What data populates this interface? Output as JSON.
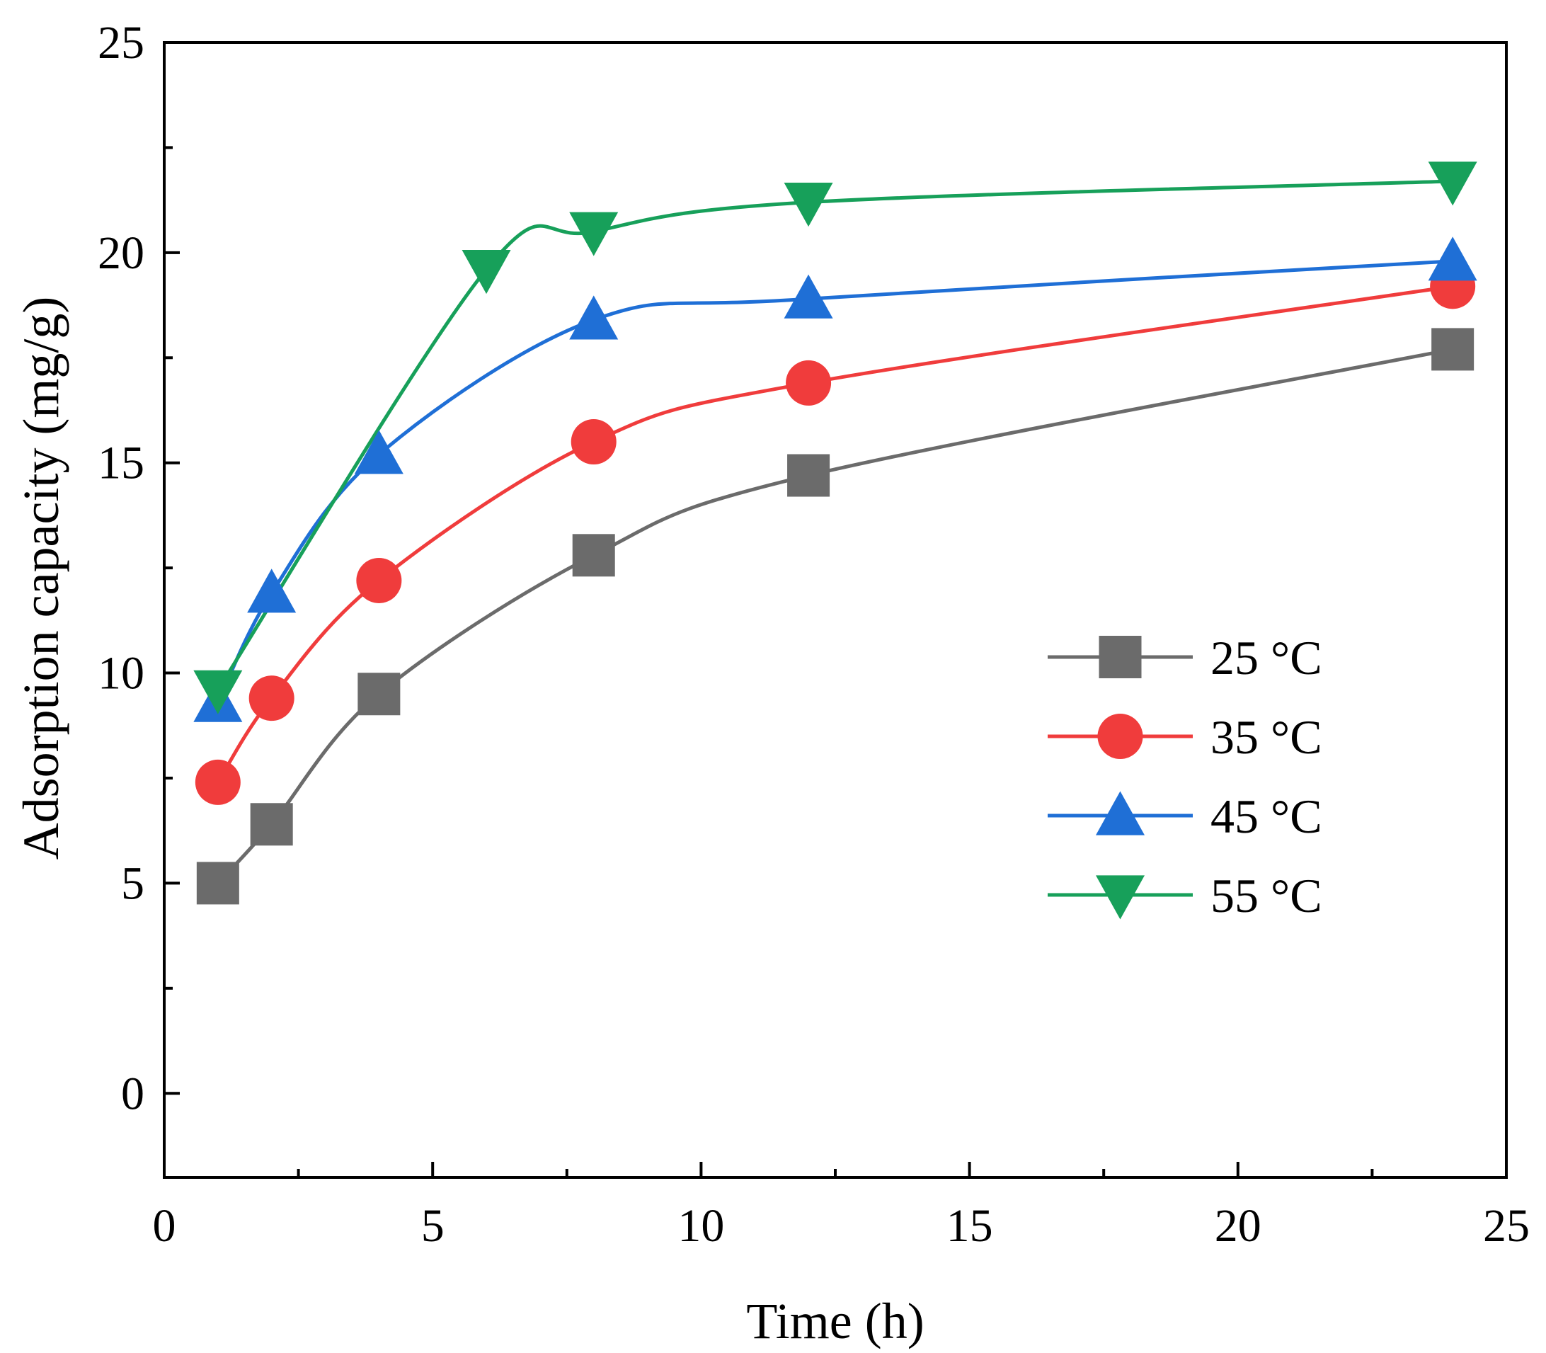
{
  "chart_data": {
    "type": "line",
    "title": "",
    "xlabel": "Time (h)",
    "ylabel": "Adsorption capacity (mg/g)",
    "xlim": [
      0,
      25
    ],
    "ylim": [
      -2,
      25
    ],
    "xticks": [
      0,
      5,
      10,
      15,
      20,
      25
    ],
    "yticks": [
      0,
      5,
      10,
      15,
      20,
      25
    ],
    "xtick_labels": [
      "0",
      "5",
      "10",
      "15",
      "20",
      "25"
    ],
    "ytick_labels": [
      "0",
      "5",
      "10",
      "15",
      "20",
      "25"
    ],
    "grid": false,
    "legend_position": "center-right",
    "series": [
      {
        "name": "25 °C",
        "color": "#6b6b6b",
        "marker": "square",
        "x": [
          1,
          2,
          4,
          8,
          12,
          24
        ],
        "y": [
          5.0,
          6.4,
          9.5,
          12.8,
          14.7,
          17.7
        ]
      },
      {
        "name": "35 °C",
        "color": "#f03c3c",
        "marker": "circle",
        "x": [
          1,
          2,
          4,
          8,
          12,
          24
        ],
        "y": [
          7.4,
          9.4,
          12.2,
          15.5,
          16.9,
          19.2
        ]
      },
      {
        "name": "45 °C",
        "color": "#1f6fd6",
        "marker": "triangle-up",
        "x": [
          1,
          2,
          4,
          8,
          12,
          24
        ],
        "y": [
          9.3,
          11.9,
          15.2,
          18.4,
          18.9,
          19.8
        ]
      },
      {
        "name": "55 °C",
        "color": "#17a05a",
        "marker": "triangle-down",
        "x": [
          1,
          6,
          8,
          12,
          24
        ],
        "y": [
          9.6,
          19.6,
          20.5,
          21.2,
          21.7
        ]
      }
    ]
  }
}
